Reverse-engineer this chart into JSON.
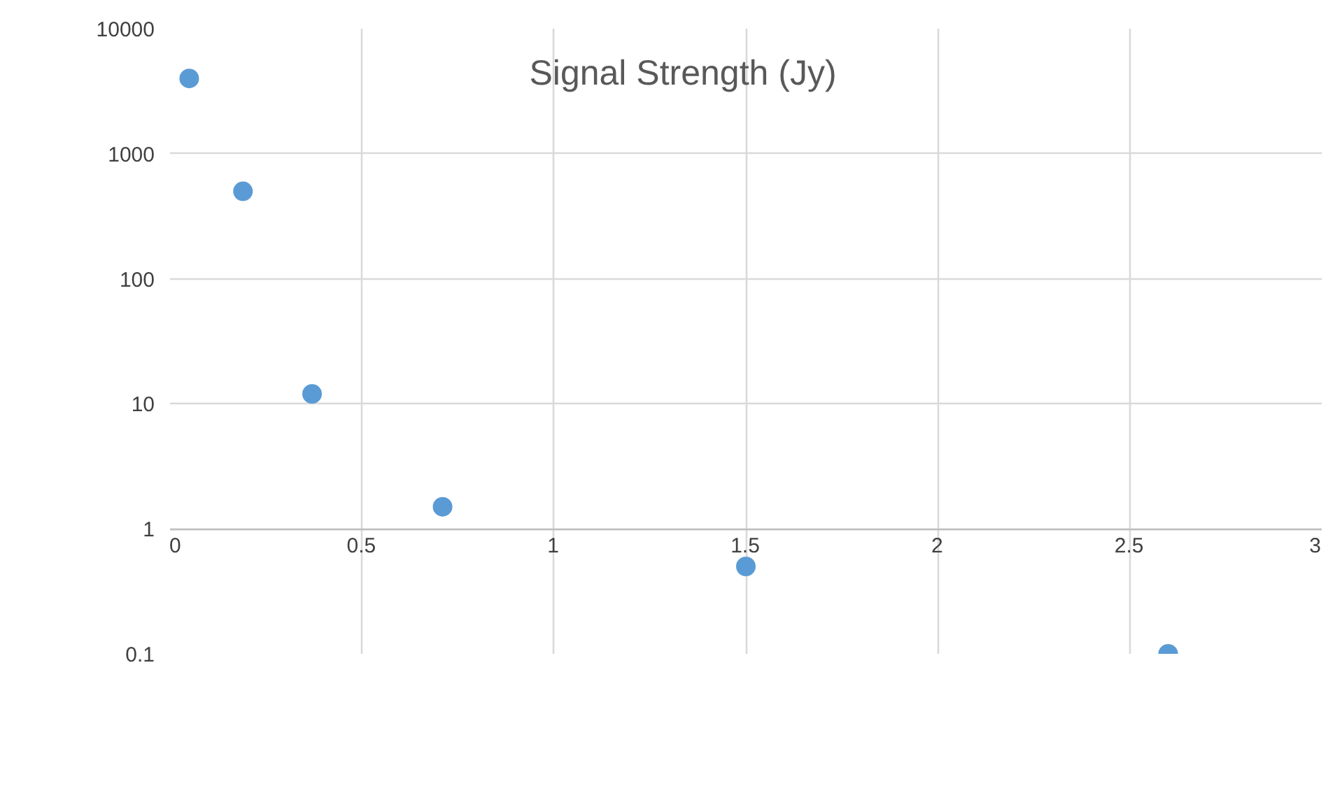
{
  "chart_data": {
    "type": "scatter",
    "title": "Signal Strength (Jy)",
    "log": "y",
    "grid": true,
    "marker": "circle",
    "x": [
      0.05,
      0.19,
      0.37,
      0.71,
      1.5,
      2.6
    ],
    "series": [
      {
        "color": "#5b9bd5",
        "values": [
          4000,
          500,
          12,
          1.5,
          0.5,
          0.1
        ]
      }
    ],
    "xlim": [
      0,
      3
    ],
    "xticks": [
      0,
      0.5,
      1,
      1.5,
      2,
      2.5,
      3
    ],
    "ylim": [
      0.1,
      10000
    ],
    "yticks": [
      0.1,
      1,
      10,
      100,
      1000,
      10000
    ]
  }
}
